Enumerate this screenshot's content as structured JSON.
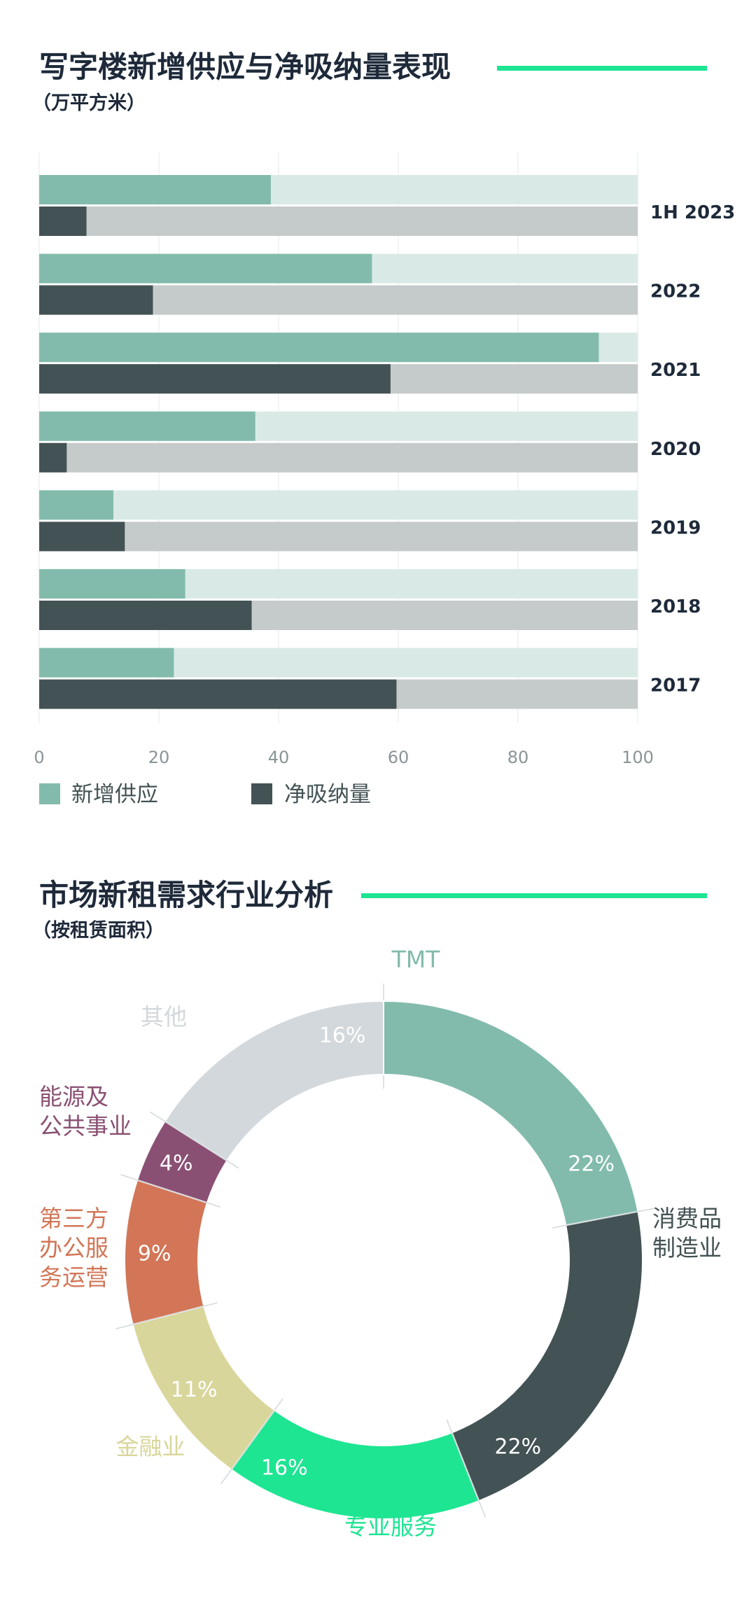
{
  "chart_data": [
    {
      "type": "bar",
      "orientation": "horizontal",
      "title": "写字楼新增供应与净吸纳量表现",
      "subtitle": "（万平方米）",
      "categories": [
        "1H 2023",
        "2022",
        "2021",
        "2020",
        "2019",
        "2018",
        "2017"
      ],
      "series": [
        {
          "name": "新增供应",
          "values": [
            38.7,
            55.6,
            93.5,
            36.1,
            12.4,
            24.4,
            22.5
          ]
        },
        {
          "name": "净吸纳量",
          "values": [
            7.9,
            19.0,
            58.7,
            4.6,
            14.3,
            35.5,
            59.7
          ]
        }
      ],
      "xlim": [
        0,
        100
      ],
      "xticks": [
        "0",
        "20",
        "40",
        "60",
        "80",
        "100"
      ],
      "legend": "bottom-left"
    },
    {
      "type": "pie",
      "donut": true,
      "title": "市场新租需求行业分析",
      "subtitle": "（按租赁面积）",
      "slices": [
        {
          "label": "TMT",
          "value": 22,
          "pct": "22%"
        },
        {
          "label": "消费品\n制造业",
          "value": 22,
          "pct": "22%"
        },
        {
          "label": "专业服务",
          "value": 16,
          "pct": "16%"
        },
        {
          "label": "金融业",
          "value": 11,
          "pct": "11%"
        },
        {
          "label": "第三方\n办公服\n务运营",
          "value": 9,
          "pct": "9%"
        },
        {
          "label": "能源及\n公共事业",
          "value": 4,
          "pct": "4%"
        },
        {
          "label": "其他",
          "value": 16,
          "pct": "16%"
        }
      ]
    }
  ],
  "colors": {
    "title": "#1e2a3a",
    "accent_line": "#1de592",
    "supply": "#82bbac",
    "supply_bg": "#d9eae6",
    "absorb": "#435254",
    "absorb_bg": "#c5cbca",
    "axis_text": "#8a9498",
    "slices": [
      "#82bbac",
      "#435254",
      "#1de592",
      "#d9d69b",
      "#d27657",
      "#8a5073",
      "#d3d8dc"
    ]
  }
}
